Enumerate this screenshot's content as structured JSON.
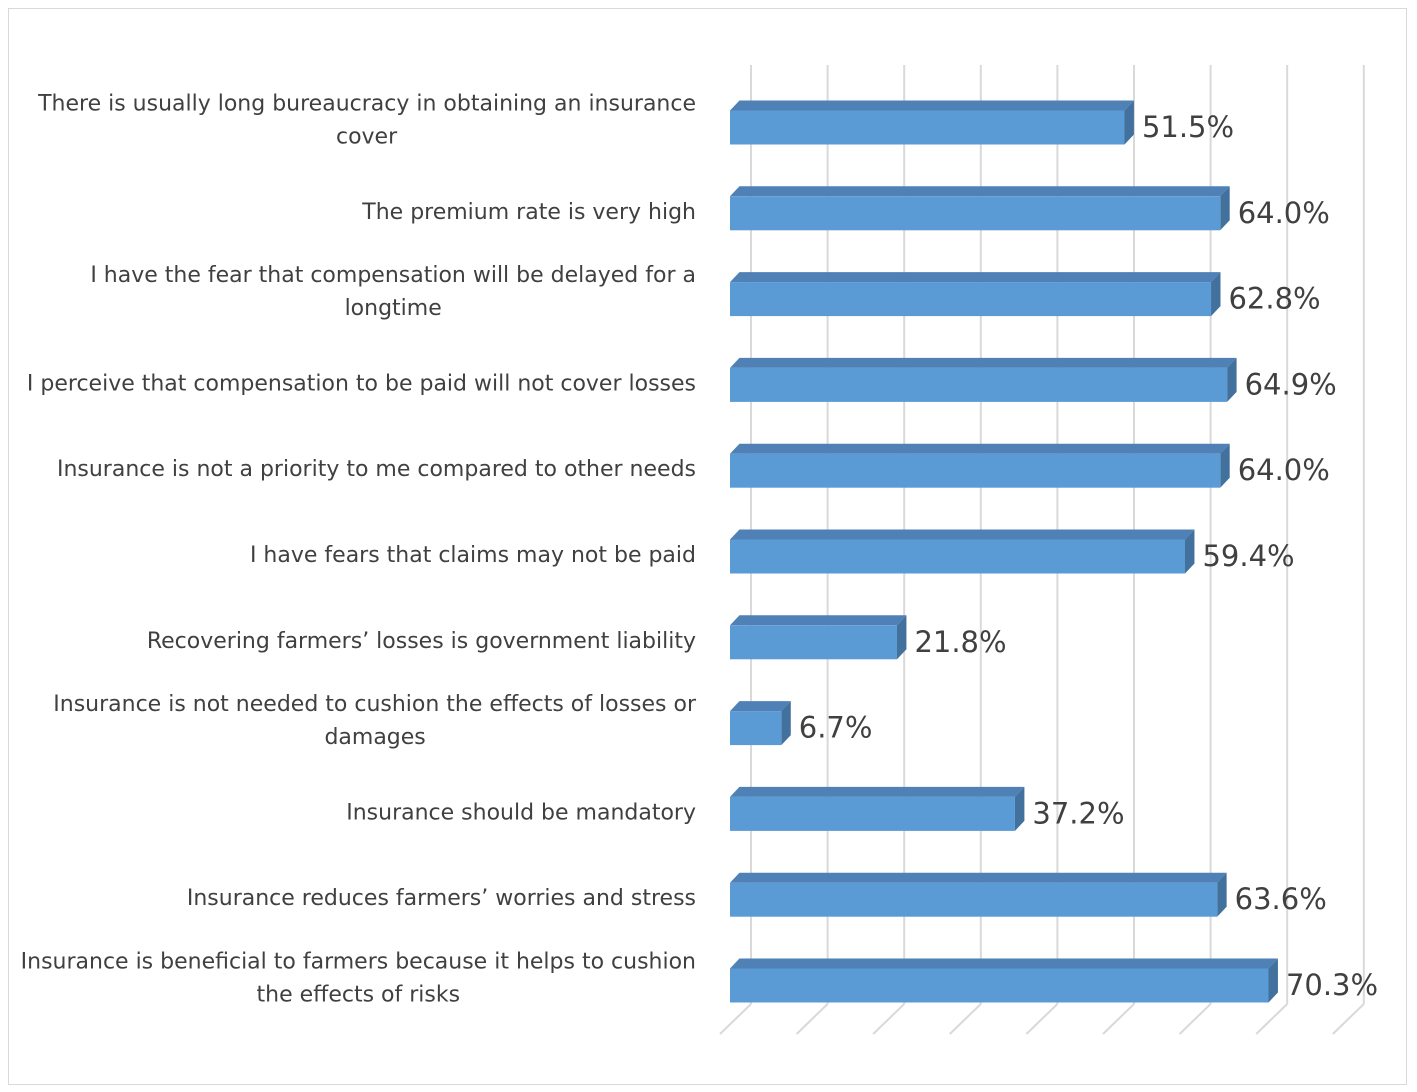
{
  "chart_data": {
    "type": "bar",
    "orientation": "horizontal",
    "style": "3d",
    "categories": [
      "There is usually long bureaucracy in obtaining an insurance cover",
      "The premium rate is very high",
      "I have the fear that compensation will be delayed for a longtime",
      "I perceive that compensation to be paid will not cover losses",
      "Insurance is not a priority to me compared to other needs",
      "I have fears that claims may not be paid",
      "Recovering farmers’ losses is government liability",
      "Insurance is not needed to cushion the effects of losses or damages",
      "Insurance should be mandatory",
      "Insurance reduces farmers’ worries and stress",
      "Insurance is beneficial to farmers because it helps to cushion the effects of risks"
    ],
    "category_lines": [
      [
        "There is usually long bureaucracy in obtaining an insurance",
        "cover"
      ],
      [
        "The premium rate is very high"
      ],
      [
        "I have the fear that compensation will be delayed for a",
        "longtime"
      ],
      [
        "I perceive that compensation to be paid will not cover losses"
      ],
      [
        "Insurance is not a priority to me compared to other needs"
      ],
      [
        "I have fears that claims may not be paid"
      ],
      [
        "Recovering farmers’ losses is government liability"
      ],
      [
        "Insurance is not needed to cushion the effects of losses or",
        "damages"
      ],
      [
        "Insurance should be mandatory"
      ],
      [
        "Insurance reduces farmers’ worries and stress"
      ],
      [
        "Insurance is beneficial to farmers because it helps to cushion",
        "the effects of risks"
      ]
    ],
    "values": [
      51.5,
      64.0,
      62.8,
      64.9,
      64.0,
      59.4,
      21.8,
      6.7,
      37.2,
      63.6,
      70.3
    ],
    "value_labels": [
      "51.5%",
      "64.0%",
      "62.8%",
      "64.9%",
      "64.0%",
      "59.4%",
      "21.8%",
      "6.7%",
      "37.2%",
      "63.6%",
      "70.3%"
    ],
    "xlim": [
      0,
      80
    ],
    "gridlines": true,
    "legend": "none",
    "colors": {
      "bar_front": "#5b9bd5",
      "bar_top": "#4f81b6",
      "bar_side": "#41719c",
      "grid": "#d9d9d9",
      "text": "#404040"
    }
  }
}
